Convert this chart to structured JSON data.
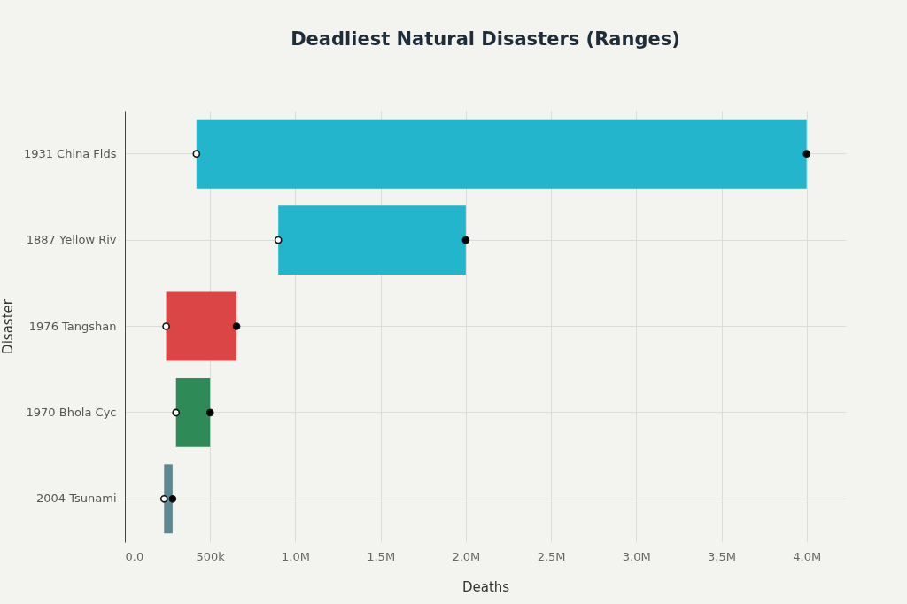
{
  "chart_data": {
    "type": "bar",
    "orientation": "horizontal",
    "title": "Deadliest Natural Disasters (Ranges)",
    "xlabel": "Deaths",
    "ylabel": "Disaster",
    "categories": [
      "1931 China Flds",
      "1887 Yellow Riv",
      "1976 Tangshan",
      "1970 Bhola Cyc",
      "2004 Tsunami"
    ],
    "series": [
      {
        "type": "bar",
        "colors": [
          "#22b5cc",
          "#22b5cc",
          "#db4545",
          "#2e8b57",
          "#5f8791"
        ],
        "base": [
          420000,
          900000,
          242000,
          300000,
          230000
        ],
        "values": [
          3580000,
          1100000,
          413000,
          200000,
          50000
        ]
      },
      {
        "type": "scatter",
        "color": "#ffffff",
        "values": [
          420000,
          900000,
          242000,
          300000,
          230000
        ]
      },
      {
        "type": "scatter",
        "color": "#000000",
        "values": [
          4000000,
          2000000,
          655000,
          500000,
          280000
        ]
      }
    ],
    "xlim": [
      0,
      4230000
    ],
    "xticks": [
      {
        "value": 0,
        "label": "0.0"
      },
      {
        "value": 500000,
        "label": "500k"
      },
      {
        "value": 1000000,
        "label": "1.0M"
      },
      {
        "value": 1500000,
        "label": "1.5M"
      },
      {
        "value": 2000000,
        "label": "2.0M"
      },
      {
        "value": 2500000,
        "label": "2.5M"
      },
      {
        "value": 3000000,
        "label": "3.0M"
      },
      {
        "value": 3500000,
        "label": "3.5M"
      },
      {
        "value": 4000000,
        "label": "4.0M"
      }
    ],
    "grid": true,
    "marker": "circle"
  }
}
